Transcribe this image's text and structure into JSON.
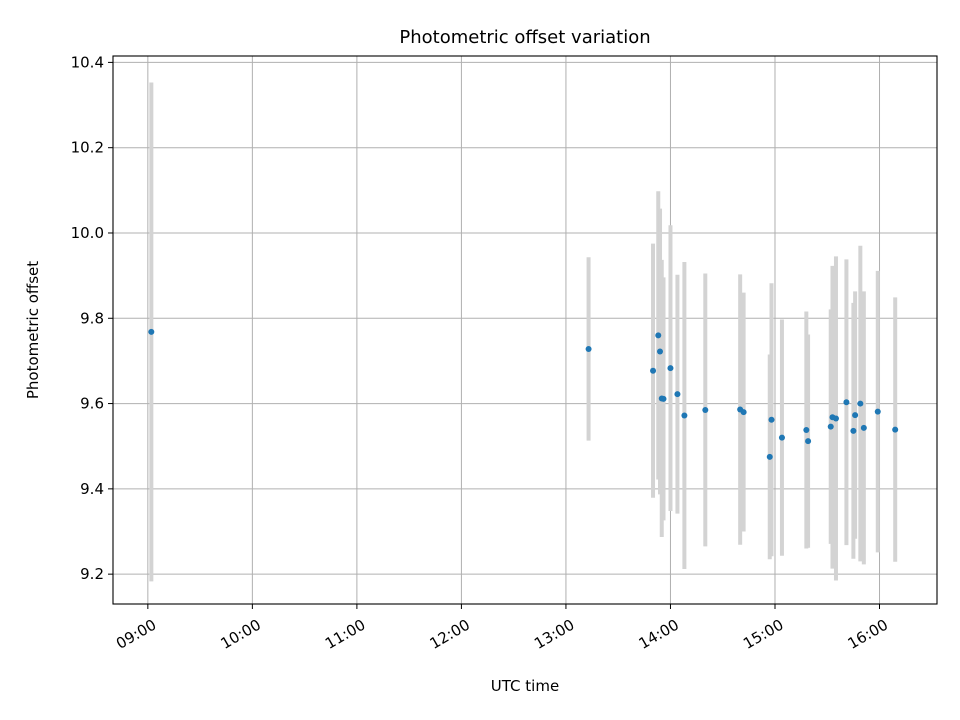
{
  "chart_data": {
    "type": "scatter",
    "title": "Photometric offset variation",
    "xlabel": "UTC time",
    "ylabel": "Photometric offset",
    "x_tick_labels": [
      "09:00",
      "10:00",
      "11:00",
      "12:00",
      "13:00",
      "14:00",
      "15:00",
      "16:00"
    ],
    "y_tick_labels": [
      "9.2",
      "9.4",
      "9.6",
      "9.8",
      "10.0",
      "10.2",
      "10.4"
    ],
    "xlim": [
      "08:40",
      "16:33"
    ],
    "ylim": [
      9.13,
      10.415
    ],
    "grid": true,
    "marker_color": "#1f77b4",
    "errorbar_color": "#d3d3d3",
    "series": [
      {
        "points": [
          {
            "x": "09:02",
            "y": 9.768,
            "err": 0.585
          },
          {
            "x": "13:13",
            "y": 9.728,
            "err": 0.215
          },
          {
            "x": "13:50",
            "y": 9.677,
            "err": 0.298
          },
          {
            "x": "13:53",
            "y": 9.76,
            "err": 0.338
          },
          {
            "x": "13:54",
            "y": 9.722,
            "err": 0.335
          },
          {
            "x": "13:55",
            "y": 9.612,
            "err": 0.325
          },
          {
            "x": "13:56",
            "y": 9.611,
            "err": 0.285
          },
          {
            "x": "14:00",
            "y": 9.683,
            "err": 0.335
          },
          {
            "x": "14:04",
            "y": 9.622,
            "err": 0.28
          },
          {
            "x": "14:08",
            "y": 9.572,
            "err": 0.36
          },
          {
            "x": "14:20",
            "y": 9.585,
            "err": 0.32
          },
          {
            "x": "14:40",
            "y": 9.586,
            "err": 0.317
          },
          {
            "x": "14:42",
            "y": 9.58,
            "err": 0.28
          },
          {
            "x": "14:57",
            "y": 9.475,
            "err": 0.24
          },
          {
            "x": "14:58",
            "y": 9.562,
            "err": 0.32
          },
          {
            "x": "15:04",
            "y": 9.52,
            "err": 0.277
          },
          {
            "x": "15:18",
            "y": 9.538,
            "err": 0.278
          },
          {
            "x": "15:19",
            "y": 9.512,
            "err": 0.25
          },
          {
            "x": "15:32",
            "y": 9.546,
            "err": 0.275
          },
          {
            "x": "15:33",
            "y": 9.568,
            "err": 0.355
          },
          {
            "x": "15:35",
            "y": 9.565,
            "err": 0.38
          },
          {
            "x": "15:41",
            "y": 9.603,
            "err": 0.335
          },
          {
            "x": "15:45",
            "y": 9.536,
            "err": 0.3
          },
          {
            "x": "15:46",
            "y": 9.573,
            "err": 0.29
          },
          {
            "x": "15:49",
            "y": 9.6,
            "err": 0.37
          },
          {
            "x": "15:51",
            "y": 9.543,
            "err": 0.32
          },
          {
            "x": "15:59",
            "y": 9.581,
            "err": 0.33
          },
          {
            "x": "16:09",
            "y": 9.539,
            "err": 0.31
          }
        ]
      }
    ]
  }
}
